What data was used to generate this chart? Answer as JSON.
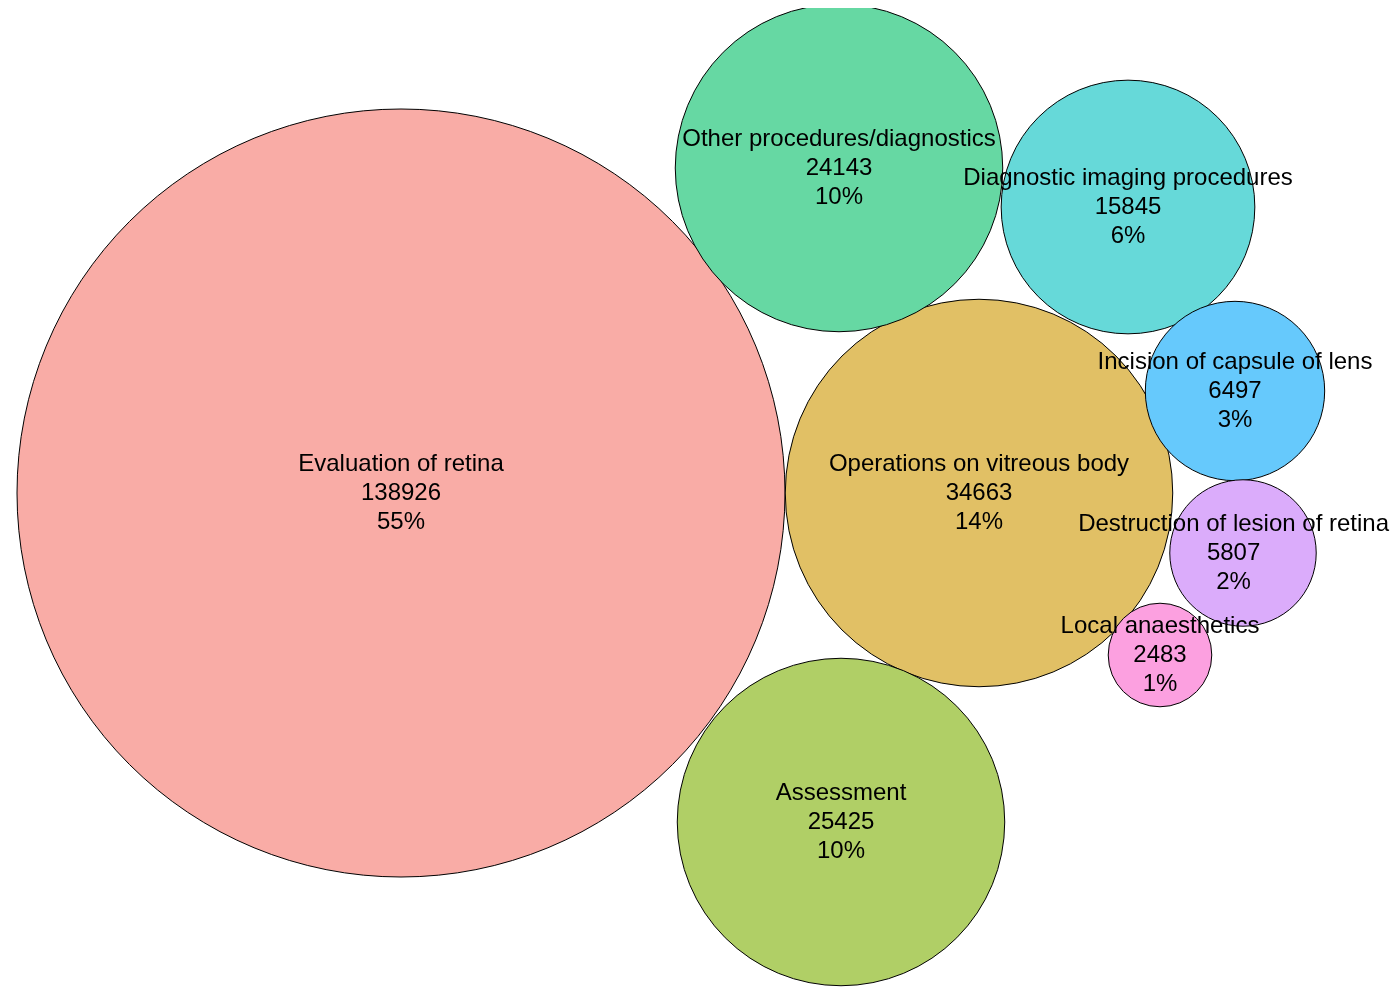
{
  "chart_data": {
    "type": "other",
    "categories": [
      "Evaluation of retina",
      "Operations on vitreous body",
      "Assessment",
      "Other procedures/diagnostics",
      "Diagnostic imaging procedures",
      "Incision of capsule of lens",
      "Destruction of lesion of retina",
      "Local anaesthetics"
    ],
    "values": [
      55,
      14,
      10,
      10,
      6,
      3,
      2,
      1
    ],
    "value_labels": [
      "138926\n55%",
      "34663\n14%",
      "25425\n10%",
      "24143\n10%",
      "15845\n6%",
      "6497\n3%",
      "5807\n2%",
      "2483\n1%"
    ],
    "colors": [
      "#f9aca6",
      "#e1c065",
      "#b0cf66",
      "#66d8a3",
      "#66d9d9",
      "#66c9fc",
      "#dbacfb",
      "#fca0e0"
    ]
  }
}
